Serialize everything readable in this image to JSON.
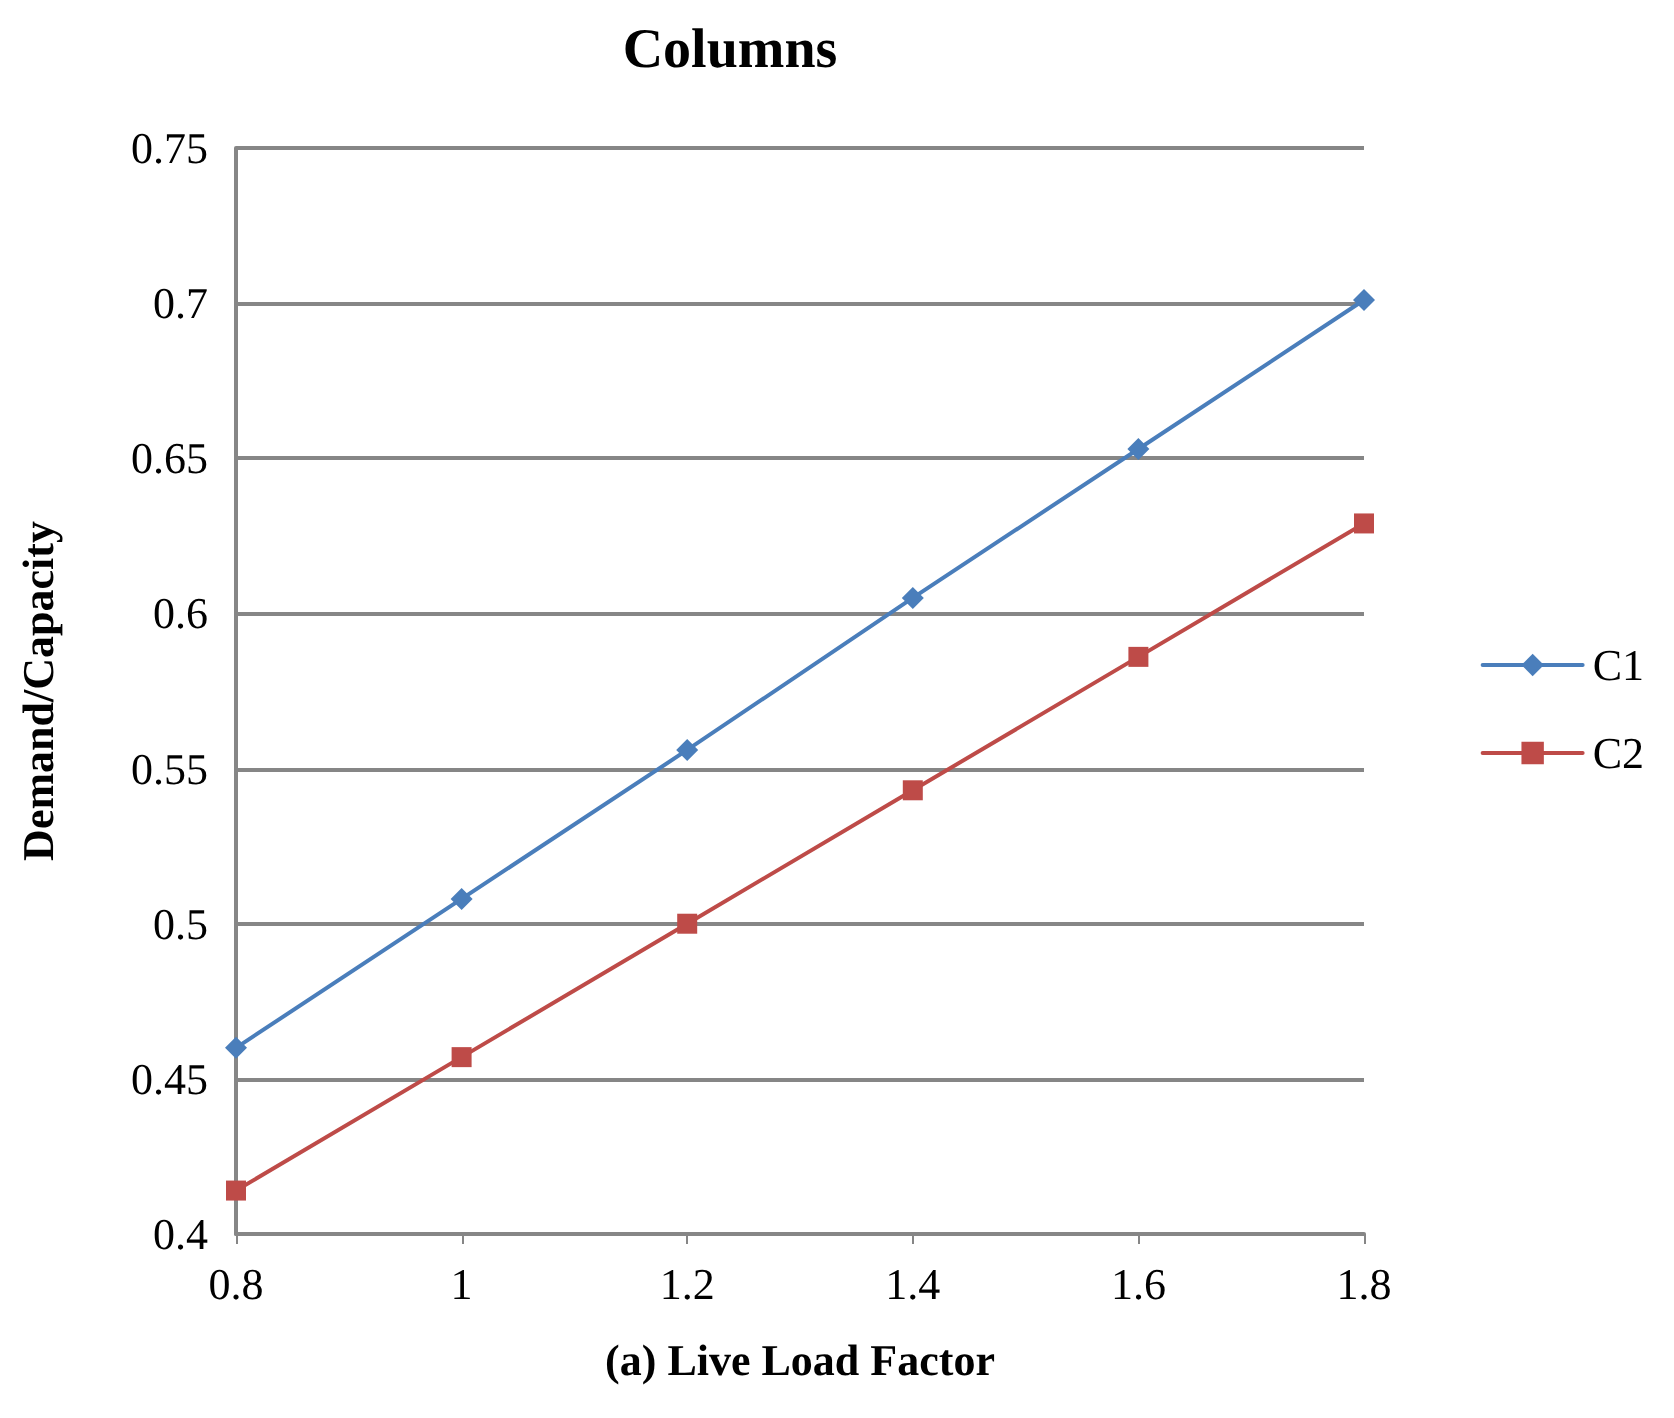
{
  "chart_data": {
    "type": "line",
    "title": "Columns",
    "xlabel": "(a) Live Load Factor",
    "ylabel": "Demand/Capacity",
    "x": [
      0.8,
      1,
      1.2,
      1.4,
      1.6,
      1.8
    ],
    "series": [
      {
        "name": "C1",
        "color": "#4a7ebb",
        "marker": "diamond",
        "values": [
          0.46,
          0.508,
          0.556,
          0.605,
          0.653,
          0.701
        ]
      },
      {
        "name": "C2",
        "color": "#be4b48",
        "marker": "square",
        "values": [
          0.414,
          0.457,
          0.5,
          0.543,
          0.586,
          0.629
        ]
      }
    ],
    "xlim": [
      0.8,
      1.8
    ],
    "xticks": [
      0.8,
      1,
      1.2,
      1.4,
      1.6,
      1.8
    ],
    "ylim": [
      0.4,
      0.75
    ],
    "yticks": [
      0.4,
      0.45,
      0.5,
      0.55,
      0.6,
      0.65,
      0.7,
      0.75
    ],
    "grid": "y",
    "legend": "right"
  }
}
